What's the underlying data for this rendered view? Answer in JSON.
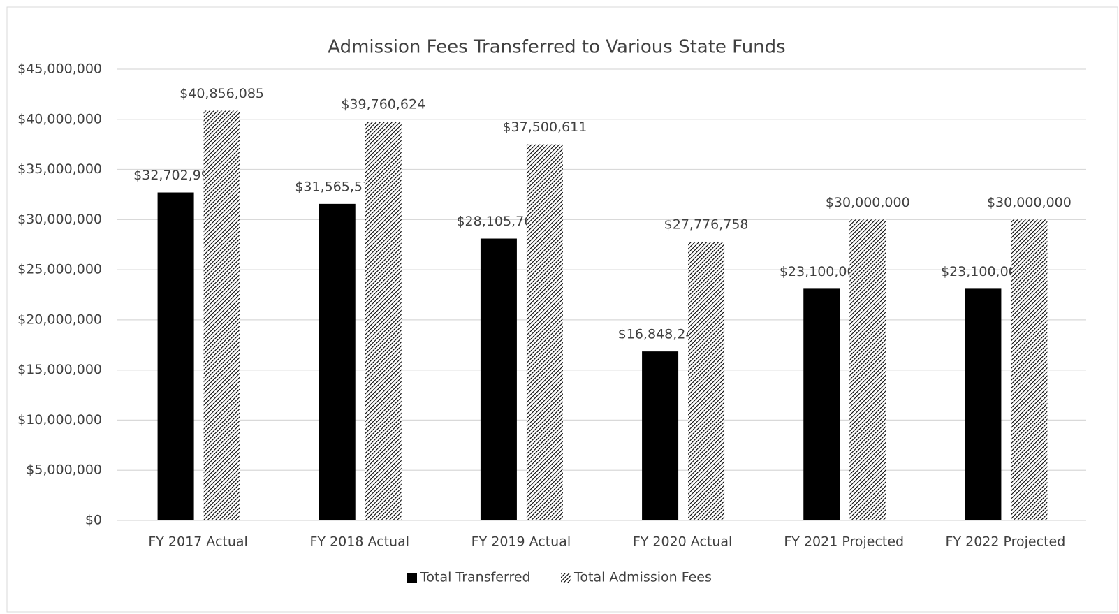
{
  "chart_data": {
    "type": "bar",
    "title": "Admission Fees Transferred to Various State Funds",
    "categories": [
      "FY 2017 Actual",
      "FY 2018 Actual",
      "FY 2019 Actual",
      "FY 2020 Actual",
      "FY 2021 Projected",
      "FY 2022 Projected"
    ],
    "series": [
      {
        "name": "Total Transferred",
        "color": "#000000",
        "hatch": false,
        "values": [
          32702995,
          31565570,
          28105767,
          16848240,
          23100000,
          23100000
        ],
        "value_labels": [
          "$32,702,995",
          "$31,565,570",
          "$28,105,767",
          "$16,848,240",
          "$23,100,000",
          "$23,100,000"
        ]
      },
      {
        "name": "Total Admission Fees",
        "color": "#000000",
        "hatch": true,
        "values": [
          40856085,
          39760624,
          37500611,
          27776758,
          30000000,
          30000000
        ],
        "value_labels": [
          "$40,856,085",
          "$39,760,624",
          "$37,500,611",
          "$27,776,758",
          "$30,000,000",
          "$30,000,000"
        ]
      }
    ],
    "ylim": [
      0,
      45000000
    ],
    "yticks": [
      {
        "value": 0,
        "label": "$0"
      },
      {
        "value": 5000000,
        "label": "$5,000,000"
      },
      {
        "value": 10000000,
        "label": "$10,000,000"
      },
      {
        "value": 15000000,
        "label": "$15,000,000"
      },
      {
        "value": 20000000,
        "label": "$20,000,000"
      },
      {
        "value": 25000000,
        "label": "$25,000,000"
      },
      {
        "value": 30000000,
        "label": "$30,000,000"
      },
      {
        "value": 35000000,
        "label": "$35,000,000"
      },
      {
        "value": 40000000,
        "label": "$40,000,000"
      },
      {
        "value": 45000000,
        "label": "$45,000,000"
      }
    ],
    "grid": true,
    "legend": "bottom"
  }
}
